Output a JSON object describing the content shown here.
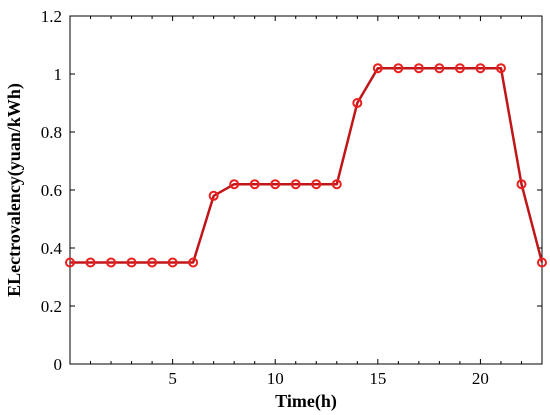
{
  "chart_data": {
    "type": "line",
    "xlabel": "Time(h)",
    "ylabel": "ELectrovalency(yuan/kWh)",
    "xlim": [
      0,
      23
    ],
    "ylim": [
      0,
      1.2
    ],
    "x_ticks": [
      5,
      10,
      15,
      20
    ],
    "x_tick_labels": [
      "5",
      "10",
      "15",
      "20"
    ],
    "x_minor_ticks": [
      1,
      2,
      3,
      4,
      6,
      7,
      8,
      9,
      11,
      12,
      13,
      14,
      16,
      17,
      18,
      19,
      21,
      22
    ],
    "y_ticks": [
      0,
      0.2,
      0.4,
      0.6,
      0.8,
      1.0,
      1.2
    ],
    "y_tick_labels": [
      "0",
      "0.2",
      "0.4",
      "0.6",
      "0.8",
      "1",
      "1.2"
    ],
    "grid": false,
    "series": [
      {
        "x": [
          0,
          1,
          2,
          3,
          4,
          5,
          6,
          7,
          8,
          9,
          10,
          11,
          12,
          13,
          14,
          15,
          16,
          17,
          18,
          19,
          20,
          21,
          22,
          23
        ],
        "values": [
          0.35,
          0.35,
          0.35,
          0.35,
          0.35,
          0.35,
          0.35,
          0.58,
          0.62,
          0.62,
          0.62,
          0.62,
          0.62,
          0.62,
          0.9,
          1.02,
          1.02,
          1.02,
          1.02,
          1.02,
          1.02,
          1.02,
          0.62,
          0.35
        ],
        "line_color": "#c0161a",
        "marker_color": "#e8201e",
        "marker": "circle-open"
      }
    ]
  }
}
